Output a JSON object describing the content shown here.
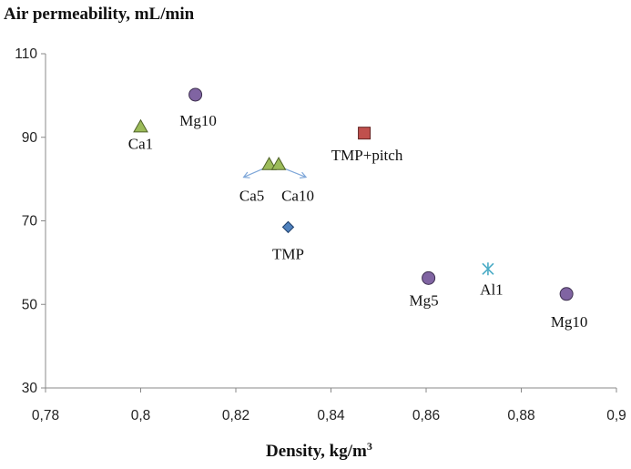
{
  "chart_data": {
    "type": "scatter",
    "title": "",
    "ylabel": "Air permeability, mL/min",
    "xlabel_main": "Density, kg/m",
    "xlabel_sup": "3",
    "xlim": [
      0.78,
      0.9
    ],
    "ylim": [
      30,
      110
    ],
    "x_ticks": [
      0.78,
      0.8,
      0.82,
      0.84,
      0.86,
      0.88,
      0.9
    ],
    "x_tick_labels": [
      "0,78",
      "0,8",
      "0,82",
      "0,84",
      "0,86",
      "0,88",
      "0,9"
    ],
    "y_ticks": [
      30,
      50,
      70,
      90,
      110
    ],
    "y_tick_labels": [
      "30",
      "50",
      "70",
      "90",
      "110"
    ],
    "points": [
      {
        "label": "Ca1",
        "x": 0.8,
        "y": 92.5,
        "marker": "triangle",
        "color": "#9BBB59",
        "stroke": "#4F6228"
      },
      {
        "label": "Mg10",
        "x": 0.8115,
        "y": 100.2,
        "marker": "circle",
        "color": "#8064A2",
        "stroke": "#3F3151"
      },
      {
        "label": "Ca5",
        "x": 0.827,
        "y": 83.5,
        "marker": "triangle",
        "color": "#9BBB59",
        "stroke": "#4F6228"
      },
      {
        "label": "Ca10",
        "x": 0.829,
        "y": 83.5,
        "marker": "triangle",
        "color": "#9BBB59",
        "stroke": "#4F6228"
      },
      {
        "label": "TMP",
        "x": 0.831,
        "y": 68.5,
        "marker": "diamond",
        "color": "#4F81BD",
        "stroke": "#1F3F6A"
      },
      {
        "label": "TMP+pitch",
        "x": 0.847,
        "y": 91.0,
        "marker": "square",
        "color": "#C0504D",
        "stroke": "#632423"
      },
      {
        "label": "Mg5",
        "x": 0.8605,
        "y": 56.3,
        "marker": "circle",
        "color": "#8064A2",
        "stroke": "#3F3151"
      },
      {
        "label": "Al1",
        "x": 0.873,
        "y": 58.5,
        "marker": "asterisk",
        "color": "#4BACC6",
        "stroke": "#4BACC6"
      },
      {
        "label": "Mg10",
        "x": 0.8895,
        "y": 52.5,
        "marker": "circle",
        "color": "#8064A2",
        "stroke": "#3F3151"
      }
    ],
    "annotation_arrow_color": "#7FA7D9"
  }
}
